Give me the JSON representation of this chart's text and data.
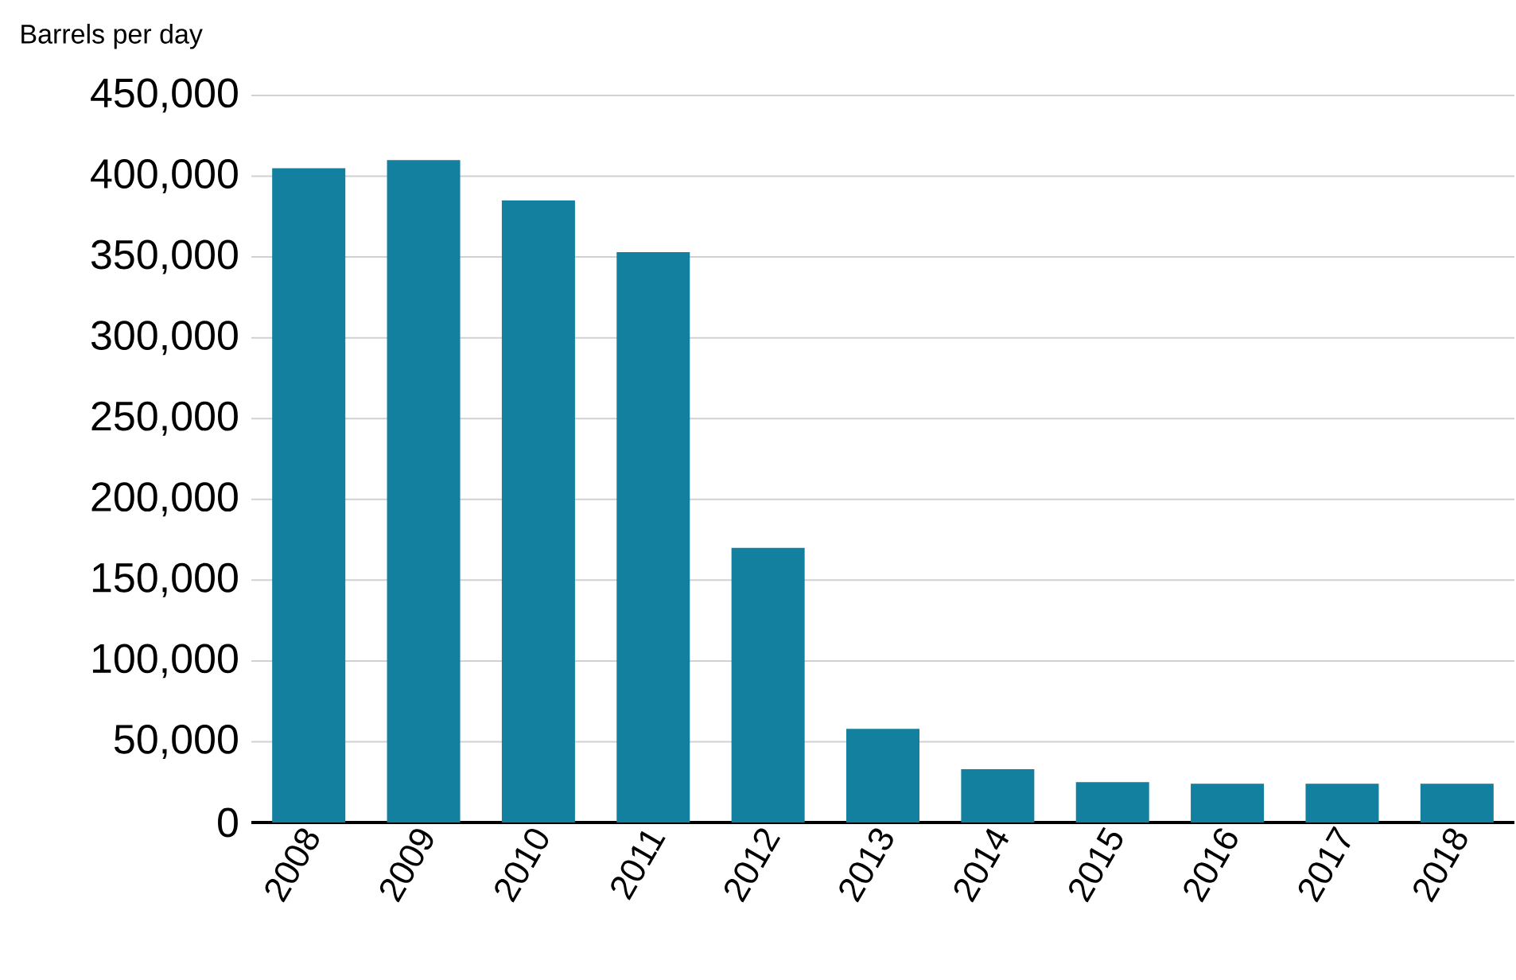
{
  "chart_data": {
    "type": "bar",
    "ylabel": "Barrels per day",
    "categories": [
      "2008",
      "2009",
      "2010",
      "2011",
      "2012",
      "2013",
      "2014",
      "2015",
      "2016",
      "2017",
      "2018"
    ],
    "values": [
      405000,
      410000,
      385000,
      353000,
      170000,
      58000,
      33000,
      25000,
      24000,
      24000,
      24000
    ],
    "color": "#13809f",
    "ylim": [
      0,
      450000
    ],
    "yticks": [
      {
        "value": 0,
        "label": "0"
      },
      {
        "value": 50000,
        "label": "50,000"
      },
      {
        "value": 100000,
        "label": "100,000"
      },
      {
        "value": 150000,
        "label": "150,000"
      },
      {
        "value": 200000,
        "label": "200,000"
      },
      {
        "value": 250000,
        "label": "250,000"
      },
      {
        "value": 300000,
        "label": "300,000"
      },
      {
        "value": 350000,
        "label": "350,000"
      },
      {
        "value": 400000,
        "label": "400,000"
      },
      {
        "value": 450000,
        "label": "450,000"
      }
    ],
    "grid": "y"
  }
}
